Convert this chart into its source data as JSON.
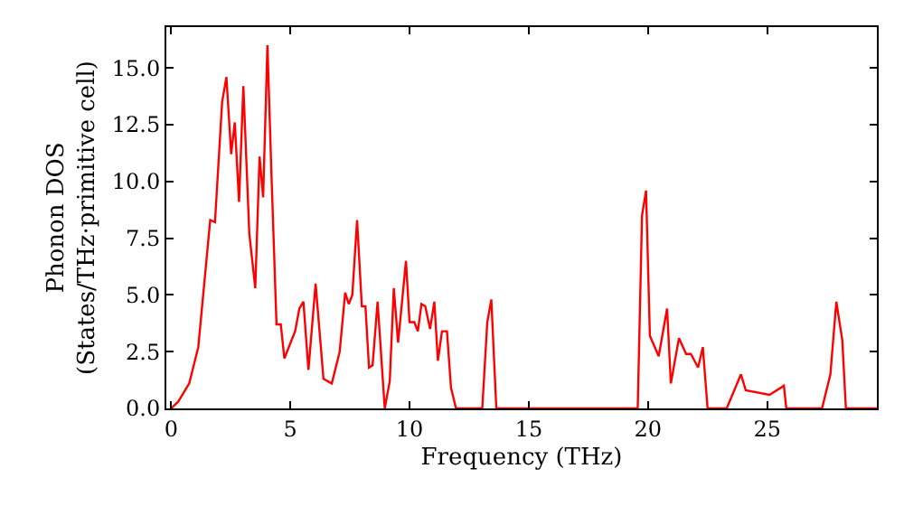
{
  "chart_data": {
    "type": "line",
    "xlabel": "Frequency (THz)",
    "ylabel": "Phonon DOS\n(States/THz·primitive cell)",
    "xlim": [
      -0.2,
      29.6
    ],
    "ylim": [
      0,
      16.8
    ],
    "xticks": [
      0,
      5,
      10,
      15,
      20,
      25
    ],
    "yticks": [
      {
        "value": 0,
        "label": "0.0"
      },
      {
        "value": 2.5,
        "label": "2.5"
      },
      {
        "value": 5,
        "label": "5.0"
      },
      {
        "value": 7.5,
        "label": "7.5"
      },
      {
        "value": 10,
        "label": "10.0"
      },
      {
        "value": 12.5,
        "label": "12.5"
      },
      {
        "value": 15,
        "label": "15.0"
      }
    ],
    "legend": false,
    "marker": "none",
    "line_style": "solid",
    "series": [
      {
        "color": "#ff0000",
        "x": [
          0,
          0.3,
          0.76,
          1.14,
          1.64,
          1.84,
          2.14,
          2.32,
          2.52,
          2.67,
          2.85,
          3.03,
          3.28,
          3.53,
          3.71,
          3.86,
          4.04,
          4.2,
          4.42,
          4.6,
          4.75,
          5.2,
          5.38,
          5.55,
          5.76,
          6.06,
          6.39,
          6.74,
          7.07,
          7.3,
          7.45,
          7.6,
          7.8,
          8.0,
          8.15,
          8.3,
          8.45,
          8.66,
          8.96,
          9.17,
          9.34,
          9.52,
          9.85,
          10.0,
          10.2,
          10.35,
          10.5,
          10.66,
          10.86,
          11.04,
          11.19,
          11.36,
          11.57,
          11.74,
          11.95,
          13.05,
          13.26,
          13.43,
          13.64,
          19.57,
          19.75,
          19.92,
          20.08,
          20.45,
          20.8,
          20.96,
          21.3,
          21.6,
          21.8,
          22.1,
          22.3,
          22.5,
          23.3,
          23.9,
          24.1,
          25.1,
          25.7,
          25.8,
          27.3,
          27.65,
          27.9,
          28.15,
          28.3,
          29.6
        ],
        "values": [
          0,
          0.3,
          1.1,
          2.7,
          8.3,
          8.2,
          13.5,
          14.6,
          11.2,
          12.6,
          9.1,
          14.2,
          7.7,
          5.3,
          11.1,
          9.3,
          16.0,
          10.6,
          3.7,
          3.7,
          2.2,
          3.4,
          4.4,
          4.7,
          1.7,
          5.5,
          1.3,
          1.1,
          2.5,
          5.1,
          4.6,
          5.0,
          8.3,
          4.5,
          4.5,
          1.8,
          1.9,
          4.7,
          0,
          1.2,
          5.3,
          2.9,
          6.5,
          3.8,
          3.8,
          3.4,
          4.6,
          4.5,
          3.5,
          4.7,
          2.1,
          3.4,
          3.4,
          0.9,
          0,
          0,
          3.8,
          4.8,
          0,
          0,
          8.5,
          9.6,
          3.2,
          2.3,
          4.4,
          1.1,
          3.1,
          2.4,
          2.4,
          1.8,
          2.7,
          0,
          0,
          1.5,
          0.8,
          0.6,
          1.0,
          0,
          0,
          1.5,
          4.7,
          3.0,
          0,
          0
        ]
      }
    ]
  }
}
